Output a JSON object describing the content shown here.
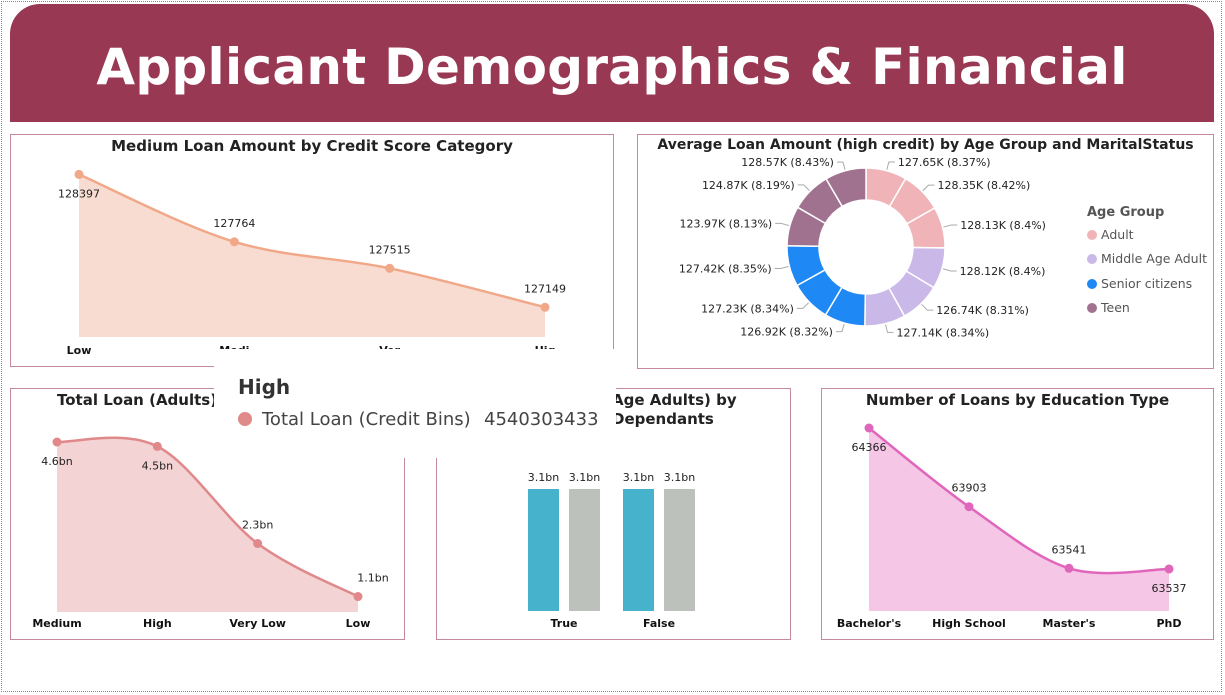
{
  "header": {
    "title": "Applicant Demographics & Financial Profile",
    "color": "#993853"
  },
  "chart_data": [
    {
      "id": "credit-score",
      "type": "area",
      "title": "Medium Loan Amount by Credit Score Category",
      "categories": [
        "Low",
        "Medium",
        "Very Low",
        "High"
      ],
      "categories_visible": [
        "Low",
        "Medi",
        "Ver",
        "Hig"
      ],
      "values": [
        128397,
        127764,
        127515,
        127149
      ],
      "color": "#f0a888",
      "fill": "#f9dcd1"
    },
    {
      "id": "age-marital",
      "type": "pie",
      "title": "Average Loan Amount (high credit) by Age Group and MaritalStatus",
      "legend_title": "Age Group",
      "legend": [
        {
          "name": "Adult",
          "color": "#f0b4b8"
        },
        {
          "name": "Middle Age Adult",
          "color": "#c9b8e8"
        },
        {
          "name": "Senior citizens",
          "color": "#1e88f5"
        },
        {
          "name": "Teen",
          "color": "#a0728f"
        }
      ],
      "slices": [
        {
          "label": "127.65K (8.37%)",
          "value": 8.37,
          "group": 0
        },
        {
          "label": "128.35K (8.42%)",
          "value": 8.42,
          "group": 0
        },
        {
          "label": "128.13K (8.4%)",
          "value": 8.4,
          "group": 0
        },
        {
          "label": "128.12K (8.4%)",
          "value": 8.4,
          "group": 1
        },
        {
          "label": "126.74K (8.31%)",
          "value": 8.31,
          "group": 1
        },
        {
          "label": "127.14K (8.34%)",
          "value": 8.34,
          "group": 1
        },
        {
          "label": "126.92K (8.32%)",
          "value": 8.32,
          "group": 2
        },
        {
          "label": "127.23K (8.34%)",
          "value": 8.34,
          "group": 2
        },
        {
          "label": "127.42K (8.35%)",
          "value": 8.35,
          "group": 2
        },
        {
          "label": "123.97K (8.13%)",
          "value": 8.13,
          "group": 3
        },
        {
          "label": "124.87K (8.19%)",
          "value": 8.19,
          "group": 3
        },
        {
          "label": "128.57K (8.43%)",
          "value": 8.43,
          "group": 3
        }
      ]
    },
    {
      "id": "adults-loan",
      "type": "area",
      "title": "Total Loan (Adults) by",
      "categories": [
        "Medium",
        "High",
        "Very Low",
        "Low"
      ],
      "values": [
        4.6,
        4.5,
        2.3,
        1.1
      ],
      "data_labels": [
        "4.6bn",
        "4.5bn",
        "2.3bn",
        "1.1bn"
      ],
      "unit": "bn",
      "color": "#e0888a",
      "fill": "#f3d3d3"
    },
    {
      "id": "dependants",
      "type": "bar",
      "title_line1": "Age Adults) by",
      "title_line2": "Dependants",
      "categories": [
        "True",
        "False"
      ],
      "series": [
        {
          "values": [
            3.1,
            3.1
          ],
          "color": "#46b2cc"
        },
        {
          "values": [
            3.1,
            3.1
          ],
          "color": "#bcc1bb"
        }
      ],
      "data_labels": [
        "3.1bn",
        "3.1bn",
        "3.1bn",
        "3.1bn"
      ],
      "unit": "bn"
    },
    {
      "id": "education",
      "type": "area",
      "title": "Number of Loans by Education Type",
      "categories": [
        "Bachelor's",
        "High School",
        "Master's",
        "PhD"
      ],
      "values": [
        64366,
        63903,
        63541,
        63537
      ],
      "color": "#e066bc",
      "fill": "#f6c6e6"
    }
  ],
  "tooltip": {
    "title": "High",
    "label": "Total Loan (Credit Bins)",
    "value": "4540303433",
    "color": "#e08a8a"
  }
}
